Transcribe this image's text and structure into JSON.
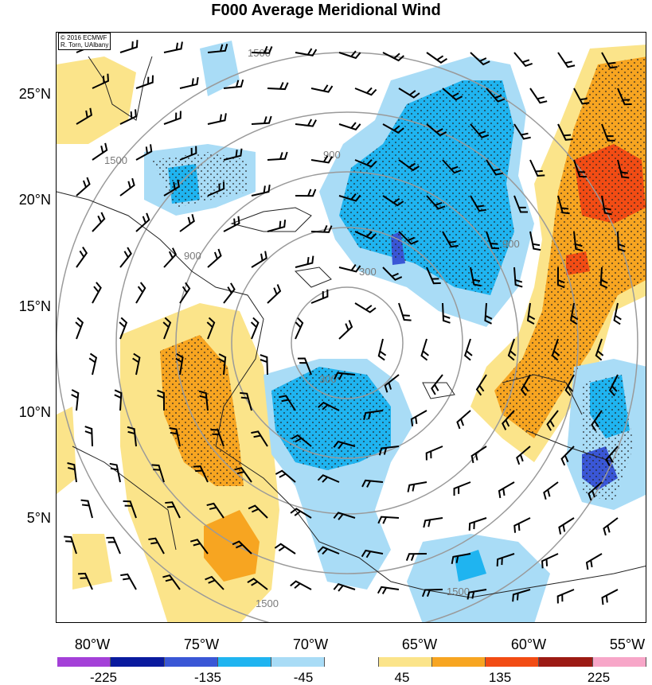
{
  "title": "F000 Average Meridional Wind",
  "credit": [
    "© 2016 ECMWF",
    "R. Torn, UAlbany"
  ],
  "lat_labels": [
    "25°N",
    "20°N",
    "15°N",
    "10°N",
    "5°N"
  ],
  "lon_labels": [
    "80°W",
    "75°W",
    "70°W",
    "65°W",
    "60°W",
    "55°W"
  ],
  "contour_labels": [
    "1500",
    "900",
    "300"
  ],
  "colorbar": {
    "colors": [
      "#a440d8",
      "#0a1a9e",
      "#3a57d6",
      "#1fb4f0",
      "#a9dcf6",
      "#ffffff",
      "#fbe48a",
      "#f7a521",
      "#f24c14",
      "#9c1a14",
      "#f7a6c8"
    ],
    "labels": [
      "-225",
      "-135",
      "-45",
      "45",
      "135",
      "225"
    ]
  },
  "colors": {
    "strong_neg": "#1fb4f0",
    "weak_neg": "#a9dcf6",
    "vivid_neg": "#3a57d6",
    "weak_pos": "#fbe48a",
    "strong_pos": "#f7a521",
    "vivid_pos": "#f24c14",
    "range_ring": "#9a9a9a"
  }
}
